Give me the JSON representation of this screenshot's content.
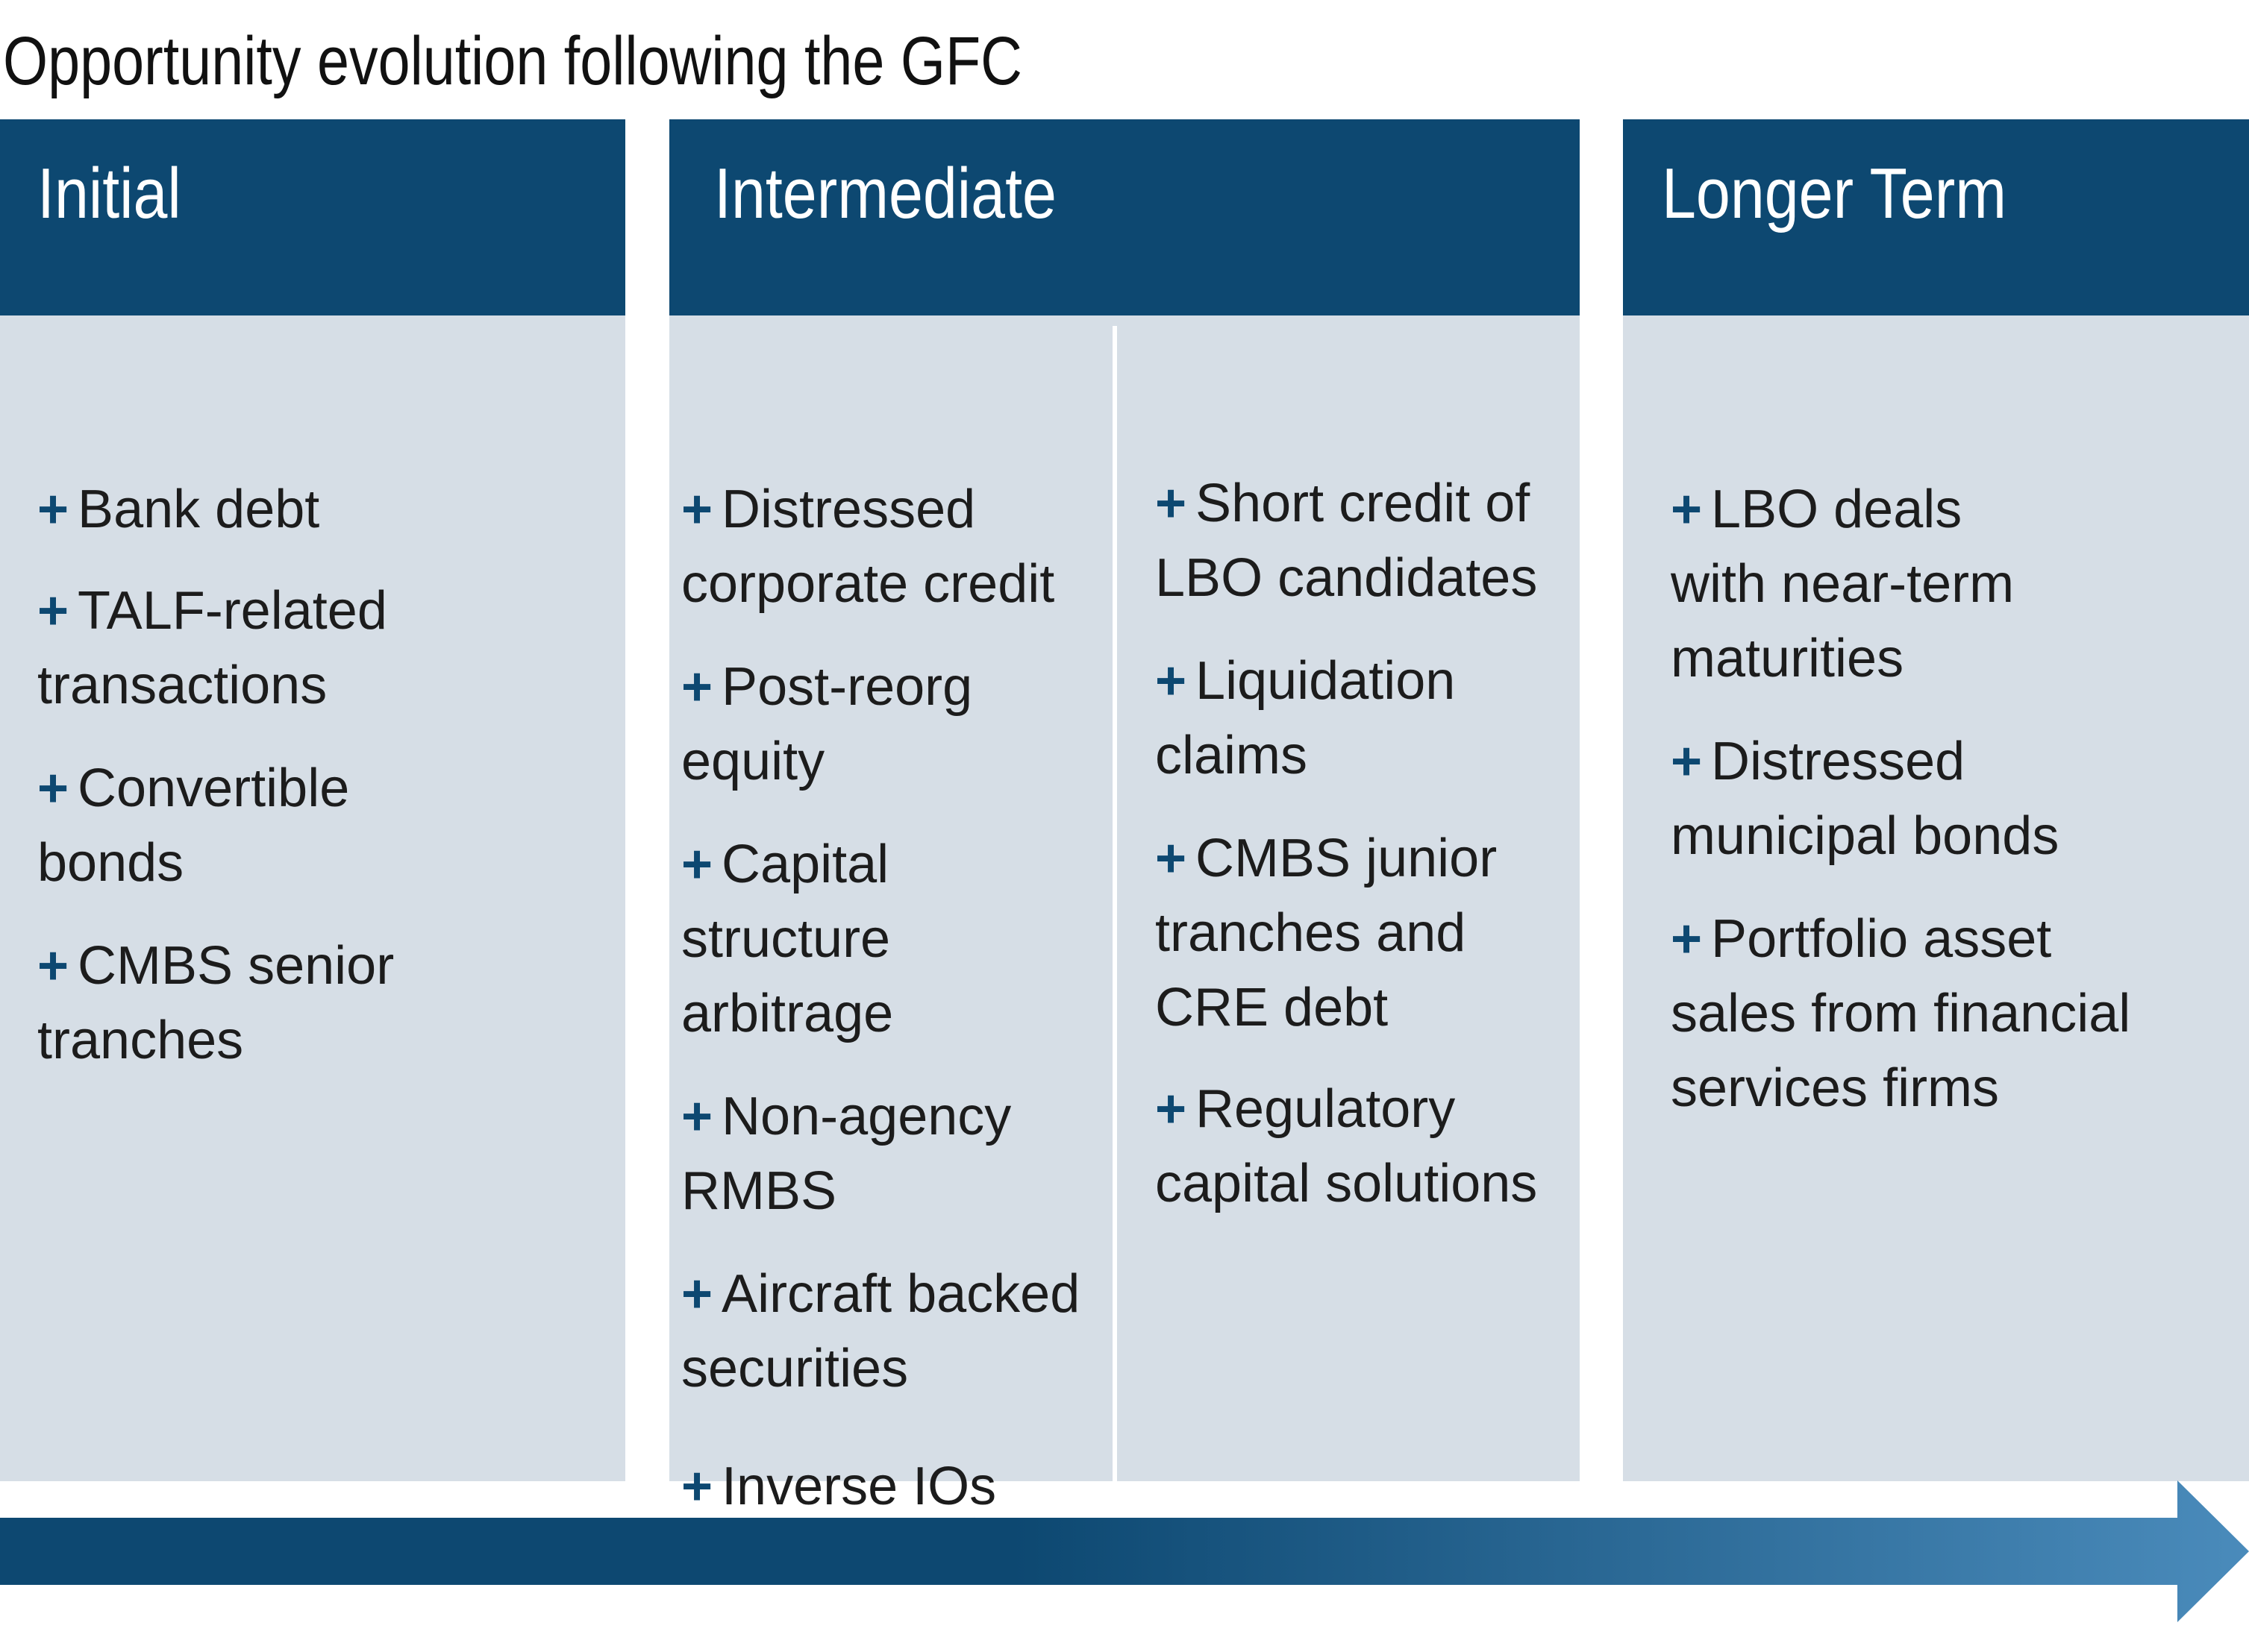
{
  "title": "Opportunity evolution following the GFC",
  "colors": {
    "header": "#0d4871",
    "panel_bg": "#d6dee6",
    "arrow_start": "#0d4871",
    "arrow_end": "#4a8bbb"
  },
  "bullet_symbol": "+",
  "panels": [
    {
      "title": "Initial",
      "columns": [
        [
          [
            "Bank debt"
          ],
          [
            "TALF-related",
            "transactions"
          ],
          [
            "Convertible",
            "bonds"
          ],
          [
            "CMBS senior",
            "tranches"
          ]
        ]
      ]
    },
    {
      "title": "Intermediate",
      "columns": [
        [
          [
            "Distressed",
            "corporate credit"
          ],
          [
            "Post-reorg",
            "equity"
          ],
          [
            "Capital",
            "structure",
            "arbitrage"
          ],
          [
            "Non-agency",
            "RMBS"
          ],
          [
            "Aircraft backed",
            "securities"
          ],
          [
            "Inverse IOs"
          ]
        ],
        [
          [
            "Short credit of",
            "LBO candidates"
          ],
          [
            "Liquidation",
            "claims"
          ],
          [
            "CMBS junior",
            "tranches and",
            "CRE debt"
          ],
          [
            "Regulatory",
            "capital solutions"
          ]
        ]
      ]
    },
    {
      "title": "Longer Term",
      "columns": [
        [
          [
            "LBO deals",
            "with near-term",
            "maturities"
          ],
          [
            "Distressed",
            "municipal bonds"
          ],
          [
            "Portfolio asset",
            "sales from financial",
            "services firms"
          ]
        ]
      ]
    }
  ]
}
